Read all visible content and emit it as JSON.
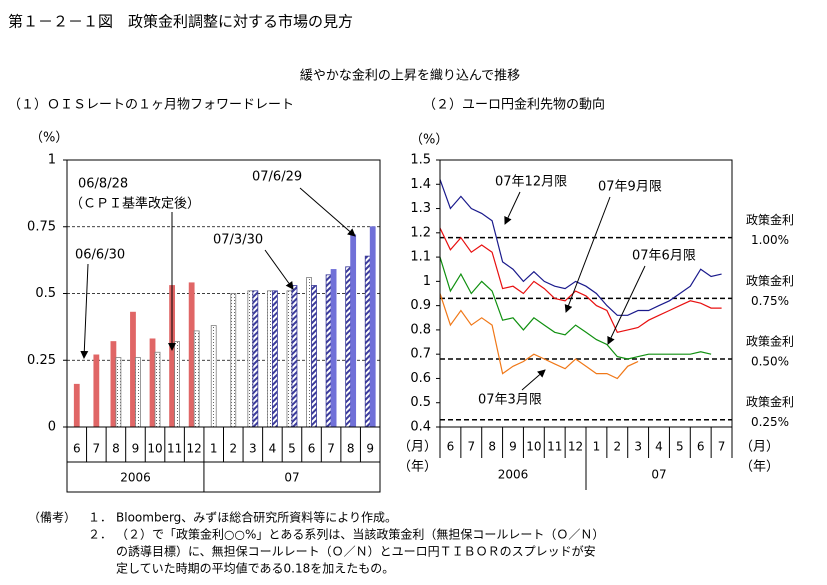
{
  "header": {
    "title": "第１－２－１図　政策金利調整に対する市場の見方",
    "subtitle": "緩やかな金利の上昇を織り込んで推移"
  },
  "chart_data": [
    {
      "type": "bar",
      "title": "（１）ＯＩＳレートの１ヶ月物フォワードレート",
      "ylabel": "（%）",
      "categories": [
        "6",
        "7",
        "8",
        "9",
        "10",
        "11",
        "12",
        "1",
        "2",
        "3",
        "4",
        "5",
        "6",
        "7",
        "8",
        "9"
      ],
      "x_groups": [
        "2006",
        "07"
      ],
      "series": [
        {
          "name": "06/6/30",
          "color": "#e06666",
          "values": [
            0.16,
            0.27,
            0.32,
            0.43,
            0.33,
            0.53,
            0.54,
            null,
            null,
            null,
            null,
            null,
            null,
            null,
            null,
            null
          ]
        },
        {
          "name": "06/8/28",
          "note": "（ＣＰＩ基準改定後）",
          "color": "#808080",
          "values": [
            null,
            null,
            0.26,
            0.26,
            0.28,
            0.32,
            0.36,
            0.38,
            0.5,
            0.51,
            0.51,
            0.51,
            0.56,
            null,
            null,
            null
          ]
        },
        {
          "name": "07/3/30",
          "color": "#3a3a9a",
          "values": [
            null,
            null,
            null,
            null,
            null,
            null,
            null,
            null,
            null,
            0.51,
            0.51,
            0.53,
            0.53,
            0.57,
            0.6,
            0.64
          ]
        },
        {
          "name": "07/6/29",
          "color": "#7070d8",
          "values": [
            null,
            null,
            null,
            null,
            null,
            null,
            null,
            null,
            null,
            null,
            null,
            null,
            null,
            0.59,
            0.72,
            0.75
          ]
        }
      ],
      "ylim": [
        0,
        1
      ],
      "yticks": [
        0,
        0.25,
        0.5,
        0.75,
        1
      ],
      "grid": true
    },
    {
      "type": "line",
      "title": "（２）ユーロ円金利先物の動向",
      "ylabel": "（%）",
      "xlabel": "（月）",
      "xlabel2": "（年）",
      "x": [
        0,
        0.5,
        1,
        1.5,
        2,
        2.5,
        3,
        3.5,
        4,
        4.5,
        5,
        5.5,
        6,
        6.5,
        7,
        7.5,
        8,
        8.5,
        9,
        9.5,
        10,
        10.5,
        11,
        11.5,
        12,
        12.5,
        13,
        13.5
      ],
      "xlim": [
        0,
        14
      ],
      "xticks": [
        {
          "value": 0.5,
          "label": "6"
        },
        {
          "value": 1.5,
          "label": "7"
        },
        {
          "value": 2.5,
          "label": "8"
        },
        {
          "value": 3.5,
          "label": "9"
        },
        {
          "value": 4.5,
          "label": "10"
        },
        {
          "value": 5.5,
          "label": "11"
        },
        {
          "value": 6.5,
          "label": "12"
        },
        {
          "value": 7.5,
          "label": "1"
        },
        {
          "value": 8.5,
          "label": "2"
        },
        {
          "value": 9.5,
          "label": "3"
        },
        {
          "value": 10.5,
          "label": "4"
        },
        {
          "value": 11.5,
          "label": "5"
        },
        {
          "value": 12.5,
          "label": "6"
        },
        {
          "value": 13.5,
          "label": "7"
        }
      ],
      "x_groups": [
        "2006",
        "07"
      ],
      "series": [
        {
          "name": "07年12月限",
          "color": "#1a1a8c",
          "values": [
            1.42,
            1.3,
            1.35,
            1.3,
            1.28,
            1.25,
            1.08,
            1.05,
            1.0,
            1.04,
            1.0,
            0.98,
            0.97,
            1.0,
            0.98,
            0.95,
            0.9,
            0.86,
            0.86,
            0.88,
            0.88,
            0.9,
            0.92,
            0.95,
            0.98,
            1.05,
            1.02,
            1.03
          ]
        },
        {
          "name": "07年9月限",
          "color": "#e81010",
          "values": [
            1.22,
            1.13,
            1.18,
            1.12,
            1.15,
            1.12,
            0.97,
            0.98,
            0.95,
            1.0,
            0.97,
            0.93,
            0.92,
            0.96,
            0.94,
            0.9,
            0.88,
            0.79,
            0.8,
            0.81,
            0.84,
            0.86,
            0.88,
            0.9,
            0.92,
            0.91,
            0.89,
            0.89
          ]
        },
        {
          "name": "07年6月限",
          "color": "#109010",
          "values": [
            1.1,
            0.96,
            1.03,
            0.95,
            1.0,
            0.96,
            0.84,
            0.85,
            0.8,
            0.85,
            0.82,
            0.79,
            0.78,
            0.82,
            0.79,
            0.76,
            0.74,
            0.69,
            0.68,
            0.69,
            0.7,
            0.7,
            0.7,
            0.7,
            0.7,
            0.71,
            0.7,
            null
          ]
        },
        {
          "name": "07年3月限",
          "color": "#f07818",
          "values": [
            0.95,
            0.82,
            0.88,
            0.82,
            0.85,
            0.82,
            0.62,
            0.65,
            0.67,
            0.7,
            0.68,
            0.66,
            0.64,
            0.68,
            0.65,
            0.62,
            0.62,
            0.6,
            0.65,
            0.67,
            null,
            null,
            null,
            null,
            null,
            null,
            null,
            null
          ]
        }
      ],
      "ylim": [
        0.4,
        1.5
      ],
      "yticks": [
        0.4,
        0.5,
        0.6,
        0.7,
        0.8,
        0.9,
        1,
        1.1,
        1.2,
        1.3,
        1.4,
        1.5
      ],
      "reference_lines": [
        {
          "value": 1.18,
          "label": "政策金利",
          "rate": "1.00%"
        },
        {
          "value": 0.93,
          "label": "政策金利",
          "rate": "0.75%"
        },
        {
          "value": 0.68,
          "label": "政策金利",
          "rate": "0.50%"
        },
        {
          "value": 0.43,
          "label": "政策金利",
          "rate": "0.25%"
        }
      ]
    }
  ],
  "notes": {
    "heading": "（備考）",
    "items": [
      {
        "number": "１．",
        "lines": [
          "Bloomberg、みずほ総合研究所資料等により作成。"
        ]
      },
      {
        "number": "２．",
        "lines": [
          "（２）で「政策金利○○%」とある系列は、当該政策金利（無担保コールレート（Ｏ／Ｎ）",
          "の誘導目標）に、無担保コールレート（Ｏ／Ｎ）とユーロ円ＴＩＢＯＲのスプレッドが安",
          "定していた時期の平均値である0.18を加えたもの。"
        ]
      }
    ]
  }
}
